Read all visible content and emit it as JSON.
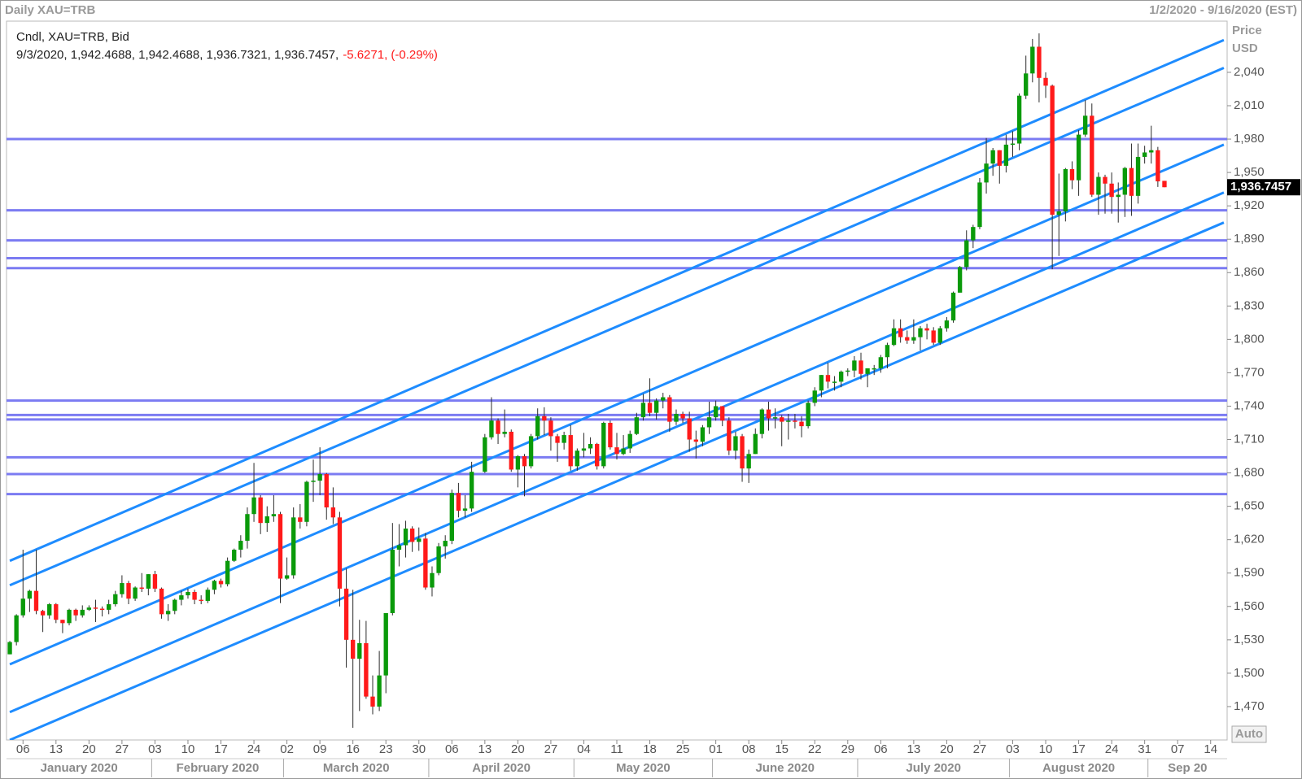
{
  "chart_data": {
    "type": "candlestick",
    "title": "Daily XAU=TRB",
    "range_text": "1/2/2020 - 9/16/2020 (EST)",
    "info_label": "Cndl, XAU=TRB, Bid",
    "info_ohlc": "9/3/2020, 1,942.4688, 1,942.4688, 1,936.7321, 1,936.7457,",
    "info_change": "-5.6271, (-0.29%)",
    "y_label": [
      "Price",
      "USD"
    ],
    "scale_button": "Auto",
    "up_color": "#0a9a0a",
    "down_color": "#ff1a1a",
    "hline_color": "#7b7bf2",
    "trendline_color": "#1e8cff",
    "x": [
      "2020-01-02",
      "2020-01-03",
      "2020-01-06",
      "2020-01-07",
      "2020-01-08",
      "2020-01-09",
      "2020-01-10",
      "2020-01-13",
      "2020-01-14",
      "2020-01-15",
      "2020-01-16",
      "2020-01-17",
      "2020-01-20",
      "2020-01-21",
      "2020-01-22",
      "2020-01-23",
      "2020-01-24",
      "2020-01-27",
      "2020-01-28",
      "2020-01-29",
      "2020-01-30",
      "2020-01-31",
      "2020-02-03",
      "2020-02-04",
      "2020-02-05",
      "2020-02-06",
      "2020-02-07",
      "2020-02-10",
      "2020-02-11",
      "2020-02-12",
      "2020-02-13",
      "2020-02-14",
      "2020-02-17",
      "2020-02-18",
      "2020-02-19",
      "2020-02-20",
      "2020-02-21",
      "2020-02-24",
      "2020-02-25",
      "2020-02-26",
      "2020-02-27",
      "2020-02-28",
      "2020-03-02",
      "2020-03-03",
      "2020-03-04",
      "2020-03-05",
      "2020-03-06",
      "2020-03-09",
      "2020-03-10",
      "2020-03-11",
      "2020-03-12",
      "2020-03-13",
      "2020-03-16",
      "2020-03-17",
      "2020-03-18",
      "2020-03-19",
      "2020-03-20",
      "2020-03-23",
      "2020-03-24",
      "2020-03-25",
      "2020-03-26",
      "2020-03-27",
      "2020-03-30",
      "2020-03-31",
      "2020-04-01",
      "2020-04-02",
      "2020-04-03",
      "2020-04-06",
      "2020-04-07",
      "2020-04-08",
      "2020-04-09",
      "2020-04-13",
      "2020-04-14",
      "2020-04-15",
      "2020-04-16",
      "2020-04-17",
      "2020-04-20",
      "2020-04-21",
      "2020-04-22",
      "2020-04-23",
      "2020-04-24",
      "2020-04-27",
      "2020-04-28",
      "2020-04-29",
      "2020-04-30",
      "2020-05-01",
      "2020-05-04",
      "2020-05-05",
      "2020-05-06",
      "2020-05-07",
      "2020-05-08",
      "2020-05-11",
      "2020-05-12",
      "2020-05-13",
      "2020-05-14",
      "2020-05-15",
      "2020-05-18",
      "2020-05-19",
      "2020-05-20",
      "2020-05-21",
      "2020-05-22",
      "2020-05-25",
      "2020-05-26",
      "2020-05-27",
      "2020-05-28",
      "2020-05-29",
      "2020-06-01",
      "2020-06-02",
      "2020-06-03",
      "2020-06-04",
      "2020-06-05",
      "2020-06-08",
      "2020-06-09",
      "2020-06-10",
      "2020-06-11",
      "2020-06-12",
      "2020-06-15",
      "2020-06-16",
      "2020-06-17",
      "2020-06-18",
      "2020-06-19",
      "2020-06-22",
      "2020-06-23",
      "2020-06-24",
      "2020-06-25",
      "2020-06-26",
      "2020-06-29",
      "2020-06-30",
      "2020-07-01",
      "2020-07-02",
      "2020-07-03",
      "2020-07-06",
      "2020-07-07",
      "2020-07-08",
      "2020-07-09",
      "2020-07-10",
      "2020-07-13",
      "2020-07-14",
      "2020-07-15",
      "2020-07-16",
      "2020-07-17",
      "2020-07-20",
      "2020-07-21",
      "2020-07-22",
      "2020-07-23",
      "2020-07-24",
      "2020-07-27",
      "2020-07-28",
      "2020-07-29",
      "2020-07-30",
      "2020-07-31",
      "2020-08-03",
      "2020-08-04",
      "2020-08-05",
      "2020-08-06",
      "2020-08-07",
      "2020-08-10",
      "2020-08-11",
      "2020-08-12",
      "2020-08-13",
      "2020-08-14",
      "2020-08-17",
      "2020-08-18",
      "2020-08-19",
      "2020-08-20",
      "2020-08-21",
      "2020-08-24",
      "2020-08-25",
      "2020-08-26",
      "2020-08-27",
      "2020-08-28",
      "2020-08-31",
      "2020-09-01",
      "2020-09-02",
      "2020-09-03"
    ],
    "open": [
      1517,
      1528,
      1552,
      1567,
      1574,
      1556,
      1552,
      1562,
      1548,
      1545,
      1557,
      1552,
      1557,
      1559,
      1558,
      1557,
      1562,
      1571,
      1581,
      1567,
      1577,
      1576,
      1589,
      1576,
      1553,
      1556,
      1566,
      1570,
      1573,
      1566,
      1565,
      1575,
      1583,
      1580,
      1601,
      1611,
      1619,
      1643,
      1658,
      1635,
      1641,
      1643,
      1585,
      1588,
      1640,
      1636,
      1672,
      1673,
      1679,
      1649,
      1640,
      1576,
      1530,
      1513,
      1527,
      1479,
      1470,
      1498,
      1554,
      1611,
      1615,
      1630,
      1618,
      1621,
      1577,
      1590,
      1614,
      1619,
      1662,
      1646,
      1648,
      1681,
      1712,
      1727,
      1715,
      1717,
      1683,
      1695,
      1686,
      1713,
      1731,
      1727,
      1713,
      1707,
      1714,
      1686,
      1700,
      1702,
      1706,
      1686,
      1725,
      1703,
      1697,
      1702,
      1715,
      1730,
      1743,
      1734,
      1745,
      1748,
      1726,
      1733,
      1729,
      1710,
      1708,
      1721,
      1730,
      1740,
      1727,
      1700,
      1713,
      1684,
      1697,
      1715,
      1737,
      1729,
      1730,
      1726,
      1727,
      1726,
      1722,
      1743,
      1754,
      1768,
      1762,
      1762,
      1771,
      1772,
      1781,
      1769,
      1774,
      1774,
      1784,
      1795,
      1810,
      1802,
      1799,
      1802,
      1810,
      1808,
      1797,
      1810,
      1817,
      1842,
      1865,
      1889,
      1901,
      1941,
      1958,
      1970,
      1956,
      1975,
      1976,
      2019,
      2039,
      2063,
      2035,
      2028,
      1912,
      1915,
      1953,
      1943,
      1984,
      2001,
      1930,
      1946,
      1940,
      1928,
      1930,
      1954,
      1929,
      1964,
      1968,
      1970,
      1942.4688
    ],
    "high": [
      1529,
      1553,
      1611,
      1575,
      1611,
      1557,
      1563,
      1563,
      1548,
      1558,
      1558,
      1561,
      1561,
      1566,
      1560,
      1566,
      1574,
      1588,
      1583,
      1578,
      1590,
      1589,
      1592,
      1577,
      1562,
      1567,
      1574,
      1576,
      1575,
      1570,
      1577,
      1584,
      1585,
      1604,
      1612,
      1624,
      1649,
      1689,
      1660,
      1650,
      1660,
      1645,
      1604,
      1649,
      1652,
      1673,
      1692,
      1703,
      1680,
      1667,
      1645,
      1594,
      1575,
      1548,
      1547,
      1498,
      1520,
      1554,
      1635,
      1634,
      1637,
      1632,
      1631,
      1626,
      1596,
      1617,
      1624,
      1665,
      1671,
      1660,
      1690,
      1715,
      1748,
      1729,
      1737,
      1719,
      1696,
      1697,
      1715,
      1738,
      1739,
      1730,
      1715,
      1717,
      1723,
      1702,
      1716,
      1712,
      1707,
      1726,
      1727,
      1716,
      1714,
      1718,
      1734,
      1751,
      1765,
      1747,
      1752,
      1750,
      1737,
      1735,
      1735,
      1718,
      1723,
      1744,
      1745,
      1740,
      1730,
      1717,
      1715,
      1701,
      1720,
      1738,
      1744,
      1738,
      1732,
      1733,
      1733,
      1731,
      1745,
      1757,
      1768,
      1779,
      1767,
      1772,
      1774,
      1785,
      1788,
      1774,
      1777,
      1786,
      1797,
      1818,
      1818,
      1808,
      1818,
      1812,
      1814,
      1811,
      1812,
      1820,
      1843,
      1866,
      1898,
      1903,
      1945,
      1981,
      1972,
      1970,
      1984,
      1987,
      2021,
      2055,
      2070,
      2075,
      2040,
      2029,
      1949,
      1954,
      1960,
      1988,
      2015,
      2012,
      1950,
      1948,
      1950,
      1941,
      1955,
      1976,
      1976,
      1974,
      1992,
      1973,
      1942.4688
    ],
    "low": [
      1517,
      1525,
      1550,
      1555,
      1553,
      1537,
      1549,
      1545,
      1536,
      1543,
      1547,
      1550,
      1556,
      1546,
      1551,
      1553,
      1560,
      1568,
      1562,
      1565,
      1573,
      1570,
      1573,
      1549,
      1547,
      1553,
      1561,
      1567,
      1562,
      1562,
      1563,
      1571,
      1577,
      1578,
      1600,
      1604,
      1612,
      1636,
      1625,
      1627,
      1636,
      1563,
      1584,
      1585,
      1630,
      1632,
      1654,
      1660,
      1638,
      1634,
      1560,
      1505,
      1451,
      1466,
      1477,
      1463,
      1466,
      1482,
      1552,
      1596,
      1604,
      1609,
      1610,
      1575,
      1569,
      1588,
      1603,
      1616,
      1640,
      1640,
      1645,
      1680,
      1710,
      1706,
      1712,
      1681,
      1667,
      1659,
      1684,
      1710,
      1714,
      1700,
      1690,
      1701,
      1682,
      1682,
      1694,
      1697,
      1683,
      1684,
      1701,
      1692,
      1696,
      1698,
      1714,
      1727,
      1731,
      1728,
      1738,
      1717,
      1723,
      1725,
      1699,
      1693,
      1704,
      1715,
      1727,
      1722,
      1696,
      1692,
      1672,
      1671,
      1697,
      1711,
      1718,
      1720,
      1704,
      1710,
      1720,
      1712,
      1720,
      1740,
      1748,
      1756,
      1754,
      1757,
      1767,
      1766,
      1764,
      1757,
      1768,
      1770,
      1774,
      1794,
      1797,
      1796,
      1796,
      1790,
      1800,
      1795,
      1795,
      1807,
      1815,
      1842,
      1862,
      1882,
      1899,
      1931,
      1947,
      1940,
      1950,
      1964,
      1970,
      2016,
      2031,
      2013,
      2017,
      1863,
      1875,
      1906,
      1935,
      1929,
      1982,
      1928,
      1912,
      1913,
      1913,
      1905,
      1910,
      1911,
      1922,
      1958,
      1958,
      1937,
      1936.7321
    ],
    "close": [
      1528,
      1552,
      1567,
      1574,
      1556,
      1552,
      1562,
      1548,
      1545,
      1557,
      1552,
      1557,
      1559,
      1558,
      1557,
      1562,
      1571,
      1581,
      1567,
      1577,
      1576,
      1589,
      1576,
      1553,
      1556,
      1566,
      1570,
      1573,
      1566,
      1565,
      1575,
      1583,
      1580,
      1601,
      1611,
      1619,
      1643,
      1658,
      1635,
      1641,
      1643,
      1585,
      1588,
      1640,
      1636,
      1672,
      1673,
      1679,
      1649,
      1640,
      1576,
      1530,
      1513,
      1527,
      1479,
      1470,
      1498,
      1554,
      1611,
      1615,
      1630,
      1618,
      1621,
      1577,
      1590,
      1614,
      1619,
      1662,
      1646,
      1648,
      1681,
      1712,
      1727,
      1715,
      1717,
      1683,
      1695,
      1686,
      1713,
      1731,
      1727,
      1713,
      1707,
      1714,
      1686,
      1700,
      1702,
      1706,
      1686,
      1725,
      1703,
      1697,
      1702,
      1715,
      1730,
      1743,
      1734,
      1745,
      1748,
      1726,
      1733,
      1729,
      1710,
      1708,
      1721,
      1730,
      1740,
      1727,
      1700,
      1713,
      1684,
      1697,
      1715,
      1737,
      1729,
      1730,
      1726,
      1727,
      1726,
      1722,
      1743,
      1754,
      1768,
      1762,
      1762,
      1771,
      1772,
      1781,
      1769,
      1774,
      1774,
      1784,
      1795,
      1810,
      1802,
      1799,
      1802,
      1810,
      1808,
      1797,
      1810,
      1817,
      1842,
      1865,
      1889,
      1901,
      1941,
      1958,
      1970,
      1956,
      1975,
      1976,
      2019,
      2039,
      2063,
      2035,
      2028,
      1912,
      1915,
      1953,
      1943,
      1984,
      2001,
      1930,
      1946,
      1940,
      1928,
      1930,
      1954,
      1929,
      1964,
      1968,
      1970,
      1942,
      1936.7457
    ],
    "xlim": [
      "2020-01-02",
      "2020-09-16"
    ],
    "xticks": [
      {
        "value": "2020-01-06",
        "label": "06"
      },
      {
        "value": "2020-01-13",
        "label": "13"
      },
      {
        "value": "2020-01-20",
        "label": "20"
      },
      {
        "value": "2020-01-27",
        "label": "27"
      },
      {
        "value": "2020-02-03",
        "label": "03"
      },
      {
        "value": "2020-02-10",
        "label": "10"
      },
      {
        "value": "2020-02-17",
        "label": "17"
      },
      {
        "value": "2020-02-24",
        "label": "24"
      },
      {
        "value": "2020-03-02",
        "label": "02"
      },
      {
        "value": "2020-03-09",
        "label": "09"
      },
      {
        "value": "2020-03-16",
        "label": "16"
      },
      {
        "value": "2020-03-23",
        "label": "23"
      },
      {
        "value": "2020-03-30",
        "label": "30"
      },
      {
        "value": "2020-04-06",
        "label": "06"
      },
      {
        "value": "2020-04-13",
        "label": "13"
      },
      {
        "value": "2020-04-20",
        "label": "20"
      },
      {
        "value": "2020-04-27",
        "label": "27"
      },
      {
        "value": "2020-05-04",
        "label": "04"
      },
      {
        "value": "2020-05-11",
        "label": "11"
      },
      {
        "value": "2020-05-18",
        "label": "18"
      },
      {
        "value": "2020-05-25",
        "label": "25"
      },
      {
        "value": "2020-06-01",
        "label": "01"
      },
      {
        "value": "2020-06-08",
        "label": "08"
      },
      {
        "value": "2020-06-15",
        "label": "15"
      },
      {
        "value": "2020-06-22",
        "label": "22"
      },
      {
        "value": "2020-06-29",
        "label": "29"
      },
      {
        "value": "2020-07-06",
        "label": "06"
      },
      {
        "value": "2020-07-13",
        "label": "13"
      },
      {
        "value": "2020-07-20",
        "label": "20"
      },
      {
        "value": "2020-07-27",
        "label": "27"
      },
      {
        "value": "2020-08-03",
        "label": "03"
      },
      {
        "value": "2020-08-10",
        "label": "10"
      },
      {
        "value": "2020-08-17",
        "label": "17"
      },
      {
        "value": "2020-08-24",
        "label": "24"
      },
      {
        "value": "2020-08-31",
        "label": "31"
      },
      {
        "value": "2020-09-07",
        "label": "07"
      },
      {
        "value": "2020-09-14",
        "label": "14"
      }
    ],
    "months": [
      {
        "value": "2020-01",
        "label": "January 2020"
      },
      {
        "value": "2020-02",
        "label": "February 2020"
      },
      {
        "value": "2020-03",
        "label": "March 2020"
      },
      {
        "value": "2020-04",
        "label": "April 2020"
      },
      {
        "value": "2020-05",
        "label": "May 2020"
      },
      {
        "value": "2020-06",
        "label": "June 2020"
      },
      {
        "value": "2020-07",
        "label": "July 2020"
      },
      {
        "value": "2020-08",
        "label": "August 2020"
      },
      {
        "value": "2020-09",
        "label": "Sep 20"
      }
    ],
    "ylim": [
      1440,
      2086
    ],
    "yticks": [
      {
        "value": 1470,
        "label": "1,470"
      },
      {
        "value": 1500,
        "label": "1,500"
      },
      {
        "value": 1530,
        "label": "1,530"
      },
      {
        "value": 1560,
        "label": "1,560"
      },
      {
        "value": 1590,
        "label": "1,590"
      },
      {
        "value": 1620,
        "label": "1,620"
      },
      {
        "value": 1650,
        "label": "1,650"
      },
      {
        "value": 1680,
        "label": "1,680"
      },
      {
        "value": 1710,
        "label": "1,710"
      },
      {
        "value": 1740,
        "label": "1,740"
      },
      {
        "value": 1770,
        "label": "1,770"
      },
      {
        "value": 1800,
        "label": "1,800"
      },
      {
        "value": 1830,
        "label": "1,830"
      },
      {
        "value": 1860,
        "label": "1,860"
      },
      {
        "value": 1890,
        "label": "1,890"
      },
      {
        "value": 1920,
        "label": "1,920"
      },
      {
        "value": 1950,
        "label": "1,950"
      },
      {
        "value": 1980,
        "label": "1,980"
      },
      {
        "value": 2010,
        "label": "2,010"
      },
      {
        "value": 2040,
        "label": "2,040"
      }
    ],
    "last_price": {
      "value": 1936.7457,
      "label": "1,936.7457"
    },
    "hlines": [
      1980,
      1916,
      1889,
      1873,
      1864,
      1745,
      1732,
      1728,
      1694,
      1679,
      1661
    ],
    "trendlines": [
      {
        "x": [
          "2020-01-02",
          "2020-09-16"
        ],
        "values": [
          1601,
          2069
        ]
      },
      {
        "x": [
          "2020-01-02",
          "2020-09-16"
        ],
        "values": [
          1579,
          2044
        ]
      },
      {
        "x": [
          "2020-01-02",
          "2020-09-16"
        ],
        "values": [
          1508,
          1975
        ]
      },
      {
        "x": [
          "2020-01-02",
          "2020-09-16"
        ],
        "values": [
          1465,
          1932
        ]
      },
      {
        "x": [
          "2020-01-02",
          "2020-09-16"
        ],
        "values": [
          1440,
          1905
        ]
      }
    ]
  }
}
